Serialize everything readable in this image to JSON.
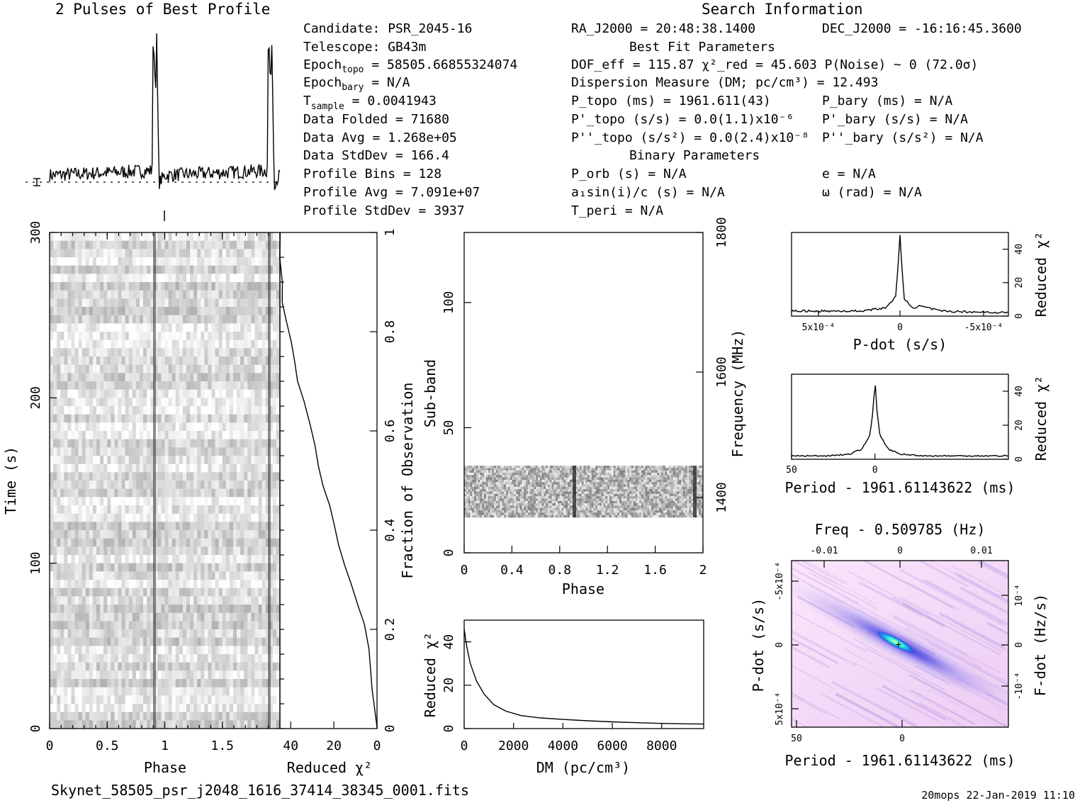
{
  "titles": {
    "profile": "2 Pulses of Best Profile",
    "search": "Search Information",
    "best_fit": "Best Fit Parameters",
    "binary": "Binary Parameters"
  },
  "info_left": [
    {
      "label": "Candidate:  PSR_2045-16",
      "sub": "",
      "rest": ""
    },
    {
      "label": "Telescope:  GB43m",
      "sub": "",
      "rest": ""
    },
    {
      "label": "Epoch",
      "sub": "topo",
      "rest": " = 58505.66855324074"
    },
    {
      "label": "Epoch",
      "sub": "bary",
      "rest": " = N/A"
    },
    {
      "label": "T",
      "sub": "sample",
      "rest": "        =   0.0041943"
    },
    {
      "label": "Data Folded",
      "sub": "",
      "rest": "    =   71680"
    },
    {
      "label": "Data Avg",
      "sub": "",
      "rest": "       =   1.268e+05"
    },
    {
      "label": "Data StdDev",
      "sub": "",
      "rest": "    =   166.4"
    },
    {
      "label": "Profile Bins",
      "sub": "",
      "rest": "   =   128"
    },
    {
      "label": "Profile Avg",
      "sub": "",
      "rest": "    =   7.091e+07"
    },
    {
      "label": "Profile StdDev",
      "sub": "",
      "rest": " =   3937"
    }
  ],
  "info_mid": {
    "ra": "RA_J2000 = 20:48:38.1400",
    "dec": "DEC_J2000 = -16:16:45.3600",
    "dof": "DOF_eff = 115.87  χ²_red = 45.603  P(Noise) ~ 0   (72.0σ)",
    "dm": "Dispersion Measure (DM; pc/cm³) = 12.493",
    "ptopo": "P_topo (ms) =  1961.611(43)",
    "pbary": "P_bary (ms) = N/A",
    "pdtopo": "P'_topo (s/s) = 0.0(1.1)x10⁻⁶",
    "pdbary": "P'_bary (s/s) = N/A",
    "pddtopo": "P''_topo (s/s²) = 0.0(2.4)x10⁻⁸",
    "pddbary": "P''_bary (s/s²) = N/A",
    "porb": "P_orb (s) = N/A",
    "ecc": "e = N/A",
    "a1": "a₁sin(i)/c (s) = N/A",
    "omega": "ω (rad) = N/A",
    "tperi": "T_peri = N/A"
  },
  "labels": {
    "time": "Time (s)",
    "phase": "Phase",
    "redchi": "Reduced χ²",
    "fraction": "Fraction of Observation",
    "subband": "Sub-band",
    "frequency": "Frequency (MHz)",
    "dm_axis": "DM (pc/cm³)",
    "pdot_axis": "P-dot (s/s)",
    "period_axis": "Period - 1961.61143622 (ms)",
    "freq_axis": "Freq - 0.509785 (Hz)",
    "fdot_axis": "F-dot (Hz/s)"
  },
  "footer": {
    "file": "Skynet_58505_psr_j2048_1616_37414_38345_0001.fits",
    "stamp": "20mops 22-Jan-2019 11:10"
  },
  "colors": {
    "grey_plot": "#808080",
    "ppdot_bg": "#f3d9f3",
    "ppdot_core": "#1c2cd8",
    "ppdot_peak": "#30ffd0"
  },
  "chart_data": [
    {
      "type": "line",
      "name": "profile",
      "title": "2 Pulses of Best Profile",
      "x": [
        0,
        0.89,
        0.9,
        0.92,
        0.93,
        0.95,
        1,
        1.89,
        1.9,
        1.92,
        1.93,
        1.95,
        2
      ],
      "y": [
        0.05,
        0.08,
        1.0,
        0.6,
        0.95,
        0.0,
        0.05,
        0.08,
        1.0,
        0.6,
        0.95,
        0.0,
        0.05
      ]
    },
    {
      "type": "heatmap",
      "name": "time-phase",
      "xlabel": "Phase",
      "ylabel": "Time (s)",
      "xlim": [
        0,
        2
      ],
      "ylim": [
        0,
        300
      ],
      "xticks": [
        0,
        0.5,
        1,
        1.5
      ],
      "yticks": [
        0,
        100,
        200,
        300
      ],
      "pulse_phase": [
        0.92,
        1.92
      ]
    },
    {
      "type": "line",
      "name": "time-chi2",
      "xlabel": "Reduced χ²",
      "ylabel": "Fraction of Observation",
      "xlim": [
        45,
        0
      ],
      "ylim": [
        0,
        1
      ],
      "xticks": [
        40,
        20,
        0
      ],
      "yticks": [
        0.2,
        0.4,
        0.6,
        0.8,
        1
      ],
      "x": [
        0,
        2,
        4,
        6,
        9,
        12,
        15,
        18,
        20,
        22,
        25,
        27,
        29,
        31,
        34,
        37,
        38,
        40,
        42,
        44,
        44,
        45,
        45
      ],
      "y": [
        0,
        0.08,
        0.16,
        0.21,
        0.25,
        0.29,
        0.33,
        0.37,
        0.41,
        0.45,
        0.49,
        0.53,
        0.57,
        0.61,
        0.66,
        0.7,
        0.74,
        0.78,
        0.82,
        0.86,
        0.9,
        0.95,
        1.0
      ]
    },
    {
      "type": "heatmap",
      "name": "subband-phase",
      "xlabel": "Phase",
      "ylabel": "Sub-band",
      "xlim": [
        0,
        2
      ],
      "ylim": [
        0,
        128
      ],
      "y2label": "Frequency (MHz)",
      "y2ticks": [
        1400,
        1600,
        1800
      ],
      "xticks": [
        0,
        0.4,
        0.8,
        1.2,
        1.6,
        2
      ],
      "yticks": [
        0,
        50,
        100
      ],
      "active_subbands": [
        14,
        35
      ]
    },
    {
      "type": "line",
      "name": "dm-chi2",
      "xlabel": "DM (pc/cm³)",
      "ylabel": "Reduced χ²",
      "xlim": [
        0,
        9700
      ],
      "ylim": [
        0,
        50
      ],
      "xticks": [
        0,
        2000,
        4000,
        6000,
        8000
      ],
      "yticks": [
        0,
        20,
        40
      ],
      "x": [
        0,
        100,
        250,
        500,
        800,
        1200,
        1700,
        2300,
        3000,
        4000,
        5000,
        6000,
        7000,
        8000,
        9000,
        9700
      ],
      "y": [
        46,
        38,
        30,
        22,
        16,
        11,
        8,
        6,
        5,
        4.2,
        3.6,
        3.1,
        2.7,
        2.4,
        2.2,
        2.1
      ]
    },
    {
      "type": "line",
      "name": "pdot-chi2",
      "xlabel": "P-dot (s/s)",
      "ylabel": "Reduced χ²",
      "xlim": [
        0.0008,
        -0.0008
      ],
      "ylim": [
        0,
        50
      ],
      "x": [
        0.0008,
        0.0003,
        0.0001,
        3e-05,
        0,
        -3e-05,
        -0.0001,
        -0.00015,
        -0.0003,
        -0.0008
      ],
      "y": [
        3,
        3,
        5,
        12,
        48,
        10,
        5,
        6,
        3,
        2
      ]
    },
    {
      "type": "line",
      "name": "period-chi2",
      "xlabel": "Period - 1961.61143622 (ms)",
      "ylabel": "Reduced χ²",
      "xlim": [
        50,
        -80
      ],
      "ylim": [
        0,
        50
      ],
      "x": [
        50,
        30,
        15,
        8,
        3,
        1,
        0,
        -1,
        -3,
        -8,
        -15,
        -30,
        -60,
        -80
      ],
      "y": [
        2,
        2,
        3,
        6,
        14,
        30,
        48,
        30,
        14,
        6,
        3,
        2,
        2,
        2
      ]
    },
    {
      "type": "heatmap",
      "name": "p-pdot",
      "xlabel": "Period - 1961.61143622 (ms)",
      "ylabel": "P-dot (s/s)",
      "x2label": "Freq - 0.509785 (Hz)",
      "y2label": "F-dot (Hz/s)",
      "xticks": [
        50,
        0
      ],
      "yticks": [
        "5x10⁻⁴",
        "0",
        "-5x10⁻⁴"
      ],
      "x2ticks": [
        -0.01,
        0,
        0.01
      ],
      "y2ticks": [
        "-10⁻⁴",
        "0",
        "10⁻⁴"
      ]
    }
  ]
}
